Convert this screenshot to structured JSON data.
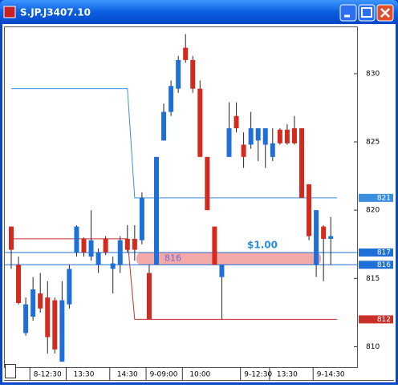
{
  "window_title": "S.JP.J3407.10",
  "chart_data": {
    "type": "candlestick",
    "categories": [
      null,
      null,
      null,
      null,
      null,
      "8-12:30",
      null,
      null,
      null,
      null,
      "13:30",
      null,
      null,
      null,
      null,
      null,
      "14:30",
      null,
      null,
      null,
      null,
      "9-09:00",
      null,
      null,
      null,
      null,
      "10:00",
      null,
      null,
      null,
      null,
      null,
      null,
      null,
      "9-12:30",
      null,
      null,
      null,
      "13:30",
      null,
      null,
      null,
      null,
      null,
      "9-14:30"
    ],
    "open": [
      818.8,
      816.0,
      811.0,
      812.2,
      813.9,
      813.6,
      813.4,
      808.9,
      813.1,
      816.9,
      817.9,
      816.6,
      816.0,
      817.9,
      815.7,
      816.0,
      817.9,
      817.9,
      817.8,
      815.4,
      816.0,
      825.1,
      827.2,
      828.9,
      831.9,
      831.0,
      828.9,
      823.9,
      818.8,
      815.1,
      823.9,
      826.9,
      824.8,
      824.8,
      825.1,
      824.8,
      823.9,
      825.9,
      825.9,
      826.0,
      826.0,
      821.9,
      816.0,
      818.8,
      817.9
    ],
    "high": [
      818.8,
      816.6,
      813.6,
      815.1,
      815.4,
      814.8,
      813.6,
      814.8,
      816.0,
      818.9,
      818.0,
      820.0,
      817.2,
      818.1,
      816.6,
      818.1,
      818.9,
      818.9,
      821.3,
      816.0,
      823.9,
      827.8,
      829.5,
      831.3,
      832.9,
      831.3,
      829.5,
      823.9,
      818.8,
      816.0,
      827.9,
      827.9,
      825.7,
      827.2,
      826.0,
      826.0,
      826.0,
      826.0,
      826.3,
      826.9,
      826.0,
      821.9,
      820.0,
      818.9,
      819.5
    ],
    "low": [
      815.7,
      813.1,
      810.8,
      811.9,
      812.5,
      809.5,
      809.5,
      808.9,
      812.8,
      816.6,
      816.6,
      816.3,
      815.4,
      816.7,
      813.9,
      815.4,
      816.9,
      816.3,
      817.5,
      812.0,
      816.0,
      825.1,
      826.9,
      828.6,
      830.8,
      828.6,
      823.9,
      820.0,
      816.0,
      812.0,
      823.9,
      825.7,
      823.1,
      824.5,
      823.6,
      823.1,
      823.6,
      824.8,
      824.8,
      824.8,
      820.9,
      817.8,
      815.1,
      814.8,
      816.0
    ],
    "close": [
      817.1,
      813.2,
      813.1,
      814.2,
      812.8,
      810.7,
      809.8,
      813.4,
      815.7,
      818.8,
      816.9,
      817.8,
      816.9,
      816.9,
      816.1,
      817.8,
      817.1,
      817.1,
      820.9,
      812.0,
      823.9,
      827.2,
      829.1,
      831.0,
      831.0,
      828.9,
      823.9,
      820.0,
      816.0,
      816.0,
      826.0,
      826.0,
      823.9,
      826.0,
      826.0,
      826.0,
      824.9,
      824.9,
      824.9,
      824.9,
      820.9,
      818.1,
      820.0,
      817.9,
      818.1
    ],
    "up_color": "#1f6fd8",
    "down_color": "#d42a1e",
    "overlays": [
      {
        "color": "#3a8fe0",
        "tag": "821",
        "values": [
          828.9,
          828.9,
          828.9,
          828.9,
          828.9,
          828.9,
          828.9,
          828.9,
          828.9,
          828.9,
          828.9,
          828.9,
          828.9,
          828.9,
          828.9,
          828.9,
          828.9,
          820.9,
          820.9,
          820.9,
          820.9,
          820.9,
          820.9,
          820.9,
          820.9,
          820.9,
          820.9,
          820.9,
          820.9,
          820.9,
          820.9,
          820.9,
          820.9,
          820.9,
          820.9,
          820.9,
          820.9,
          820.9,
          820.9,
          820.9,
          820.9,
          820.9,
          820.9,
          820.9,
          820.9
        ]
      },
      {
        "color": "#c8302a",
        "tag": "812",
        "values": [
          817.9,
          817.9,
          817.9,
          817.9,
          817.9,
          817.9,
          817.9,
          817.9,
          817.9,
          817.9,
          817.9,
          817.9,
          817.9,
          817.9,
          817.9,
          817.9,
          817.9,
          812.0,
          812.0,
          812.0,
          812.0,
          812.0,
          812.0,
          812.0,
          812.0,
          812.0,
          812.0,
          812.0,
          812.0,
          812.0,
          812.0,
          812.0,
          812.0,
          812.0,
          812.0,
          812.0,
          812.0,
          812.0,
          812.0,
          812.0,
          812.0,
          812.0,
          812.0,
          812.0,
          812.0
        ]
      }
    ],
    "levels": [
      {
        "value": 816.9,
        "label": "817",
        "color": "#1f6fd8"
      },
      {
        "value": 816.0,
        "label": "816",
        "color": "#1f6fd8"
      }
    ],
    "band": {
      "low": 816.0,
      "high": 816.9,
      "label": "816",
      "annotation": "$1.00",
      "color": "#f08c8c"
    },
    "ylim": [
      808.5,
      833.4
    ],
    "yticks": [
      810,
      815,
      820,
      825,
      830
    ]
  }
}
